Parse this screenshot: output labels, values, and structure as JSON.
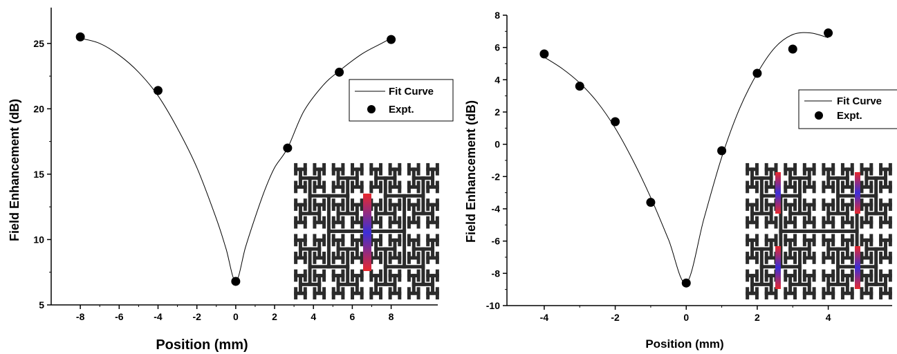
{
  "chart_data": [
    {
      "type": "scatter",
      "xlabel": "Position (mm)",
      "ylabel": "Field Enhancement (dB)",
      "xlim": [
        -9.5,
        10.4
      ],
      "ylim": [
        5,
        27
      ],
      "xticks": [
        -8,
        -6,
        -4,
        -2,
        0,
        2,
        4,
        6,
        8
      ],
      "xtick_labels": [
        "-8",
        "-6",
        "-4",
        "-2",
        "0",
        "2",
        "4",
        "6",
        "8"
      ],
      "yticks": [
        5,
        10,
        15,
        20,
        25
      ],
      "ytick_labels": [
        "5",
        "10",
        "15",
        "20",
        "25"
      ],
      "legend": {
        "position": "right",
        "line_label": "Fit Curve",
        "marker_label": "Expt."
      },
      "series": [
        {
          "name": "Expt.",
          "x": [
            -8,
            -4,
            0,
            2.67,
            5.33,
            8
          ],
          "y": [
            25.5,
            21.4,
            6.8,
            17.0,
            22.8,
            25.3
          ]
        },
        {
          "name": "Fit Curve",
          "style": "line",
          "x": [
            -8,
            -7,
            -6,
            -5,
            -4,
            -3,
            -2,
            -1,
            -0.5,
            0,
            0.5,
            1,
            1.5,
            2,
            2.67,
            3.5,
            4.5,
            5.33,
            6.5,
            7.5,
            8
          ],
          "y": [
            25.4,
            25.0,
            24.1,
            22.8,
            21.0,
            18.5,
            15.5,
            11.6,
            9.3,
            6.8,
            9.4,
            11.7,
            13.8,
            15.5,
            17.0,
            19.8,
            21.8,
            22.9,
            24.2,
            25.0,
            25.4
          ]
        }
      ],
      "inset": {
        "description": "H-tree fractal antenna inset",
        "accent_color": "#e8282c",
        "accent_color_2": "#3b2fd6"
      }
    },
    {
      "type": "scatter",
      "xlabel": "Position (mm)",
      "ylabel": "Field Enhancement (dB)",
      "xlim": [
        -5.05,
        5.8
      ],
      "ylim": [
        -10,
        8
      ],
      "xticks": [
        -4,
        -2,
        0,
        2,
        4
      ],
      "xtick_labels": [
        "-4",
        "-2",
        "0",
        "2",
        "4"
      ],
      "yticks": [
        -10,
        -8,
        -6,
        -4,
        -2,
        0,
        2,
        4,
        6,
        8
      ],
      "ytick_labels": [
        "-10",
        "-8",
        "-6",
        "-4",
        "-2",
        "0",
        "2",
        "4",
        "6",
        "8"
      ],
      "legend": {
        "position": "right",
        "line_label": "Fit Curve",
        "marker_label": "Expt."
      },
      "series": [
        {
          "name": "Expt.",
          "x": [
            -4,
            -3,
            -2,
            -1,
            0,
            1,
            2,
            3,
            4
          ],
          "y": [
            5.6,
            3.6,
            1.4,
            -3.6,
            -8.6,
            -0.4,
            4.4,
            5.9,
            6.9
          ]
        },
        {
          "name": "Fit Curve",
          "style": "line",
          "x": [
            -4,
            -3.5,
            -3,
            -2.5,
            -2,
            -1.5,
            -1,
            -0.5,
            0,
            0.5,
            1,
            1.5,
            2,
            2.5,
            3,
            3.5,
            4
          ],
          "y": [
            5.4,
            4.7,
            3.8,
            2.6,
            1.0,
            -1.0,
            -3.3,
            -5.9,
            -8.6,
            -4.6,
            -0.8,
            2.2,
            4.4,
            6.0,
            6.8,
            6.9,
            6.6
          ]
        }
      ],
      "inset": {
        "description": "H-tree fractal antenna inset",
        "accent_color": "#e8282c",
        "accent_color_2": "#3b2fd6"
      }
    }
  ]
}
